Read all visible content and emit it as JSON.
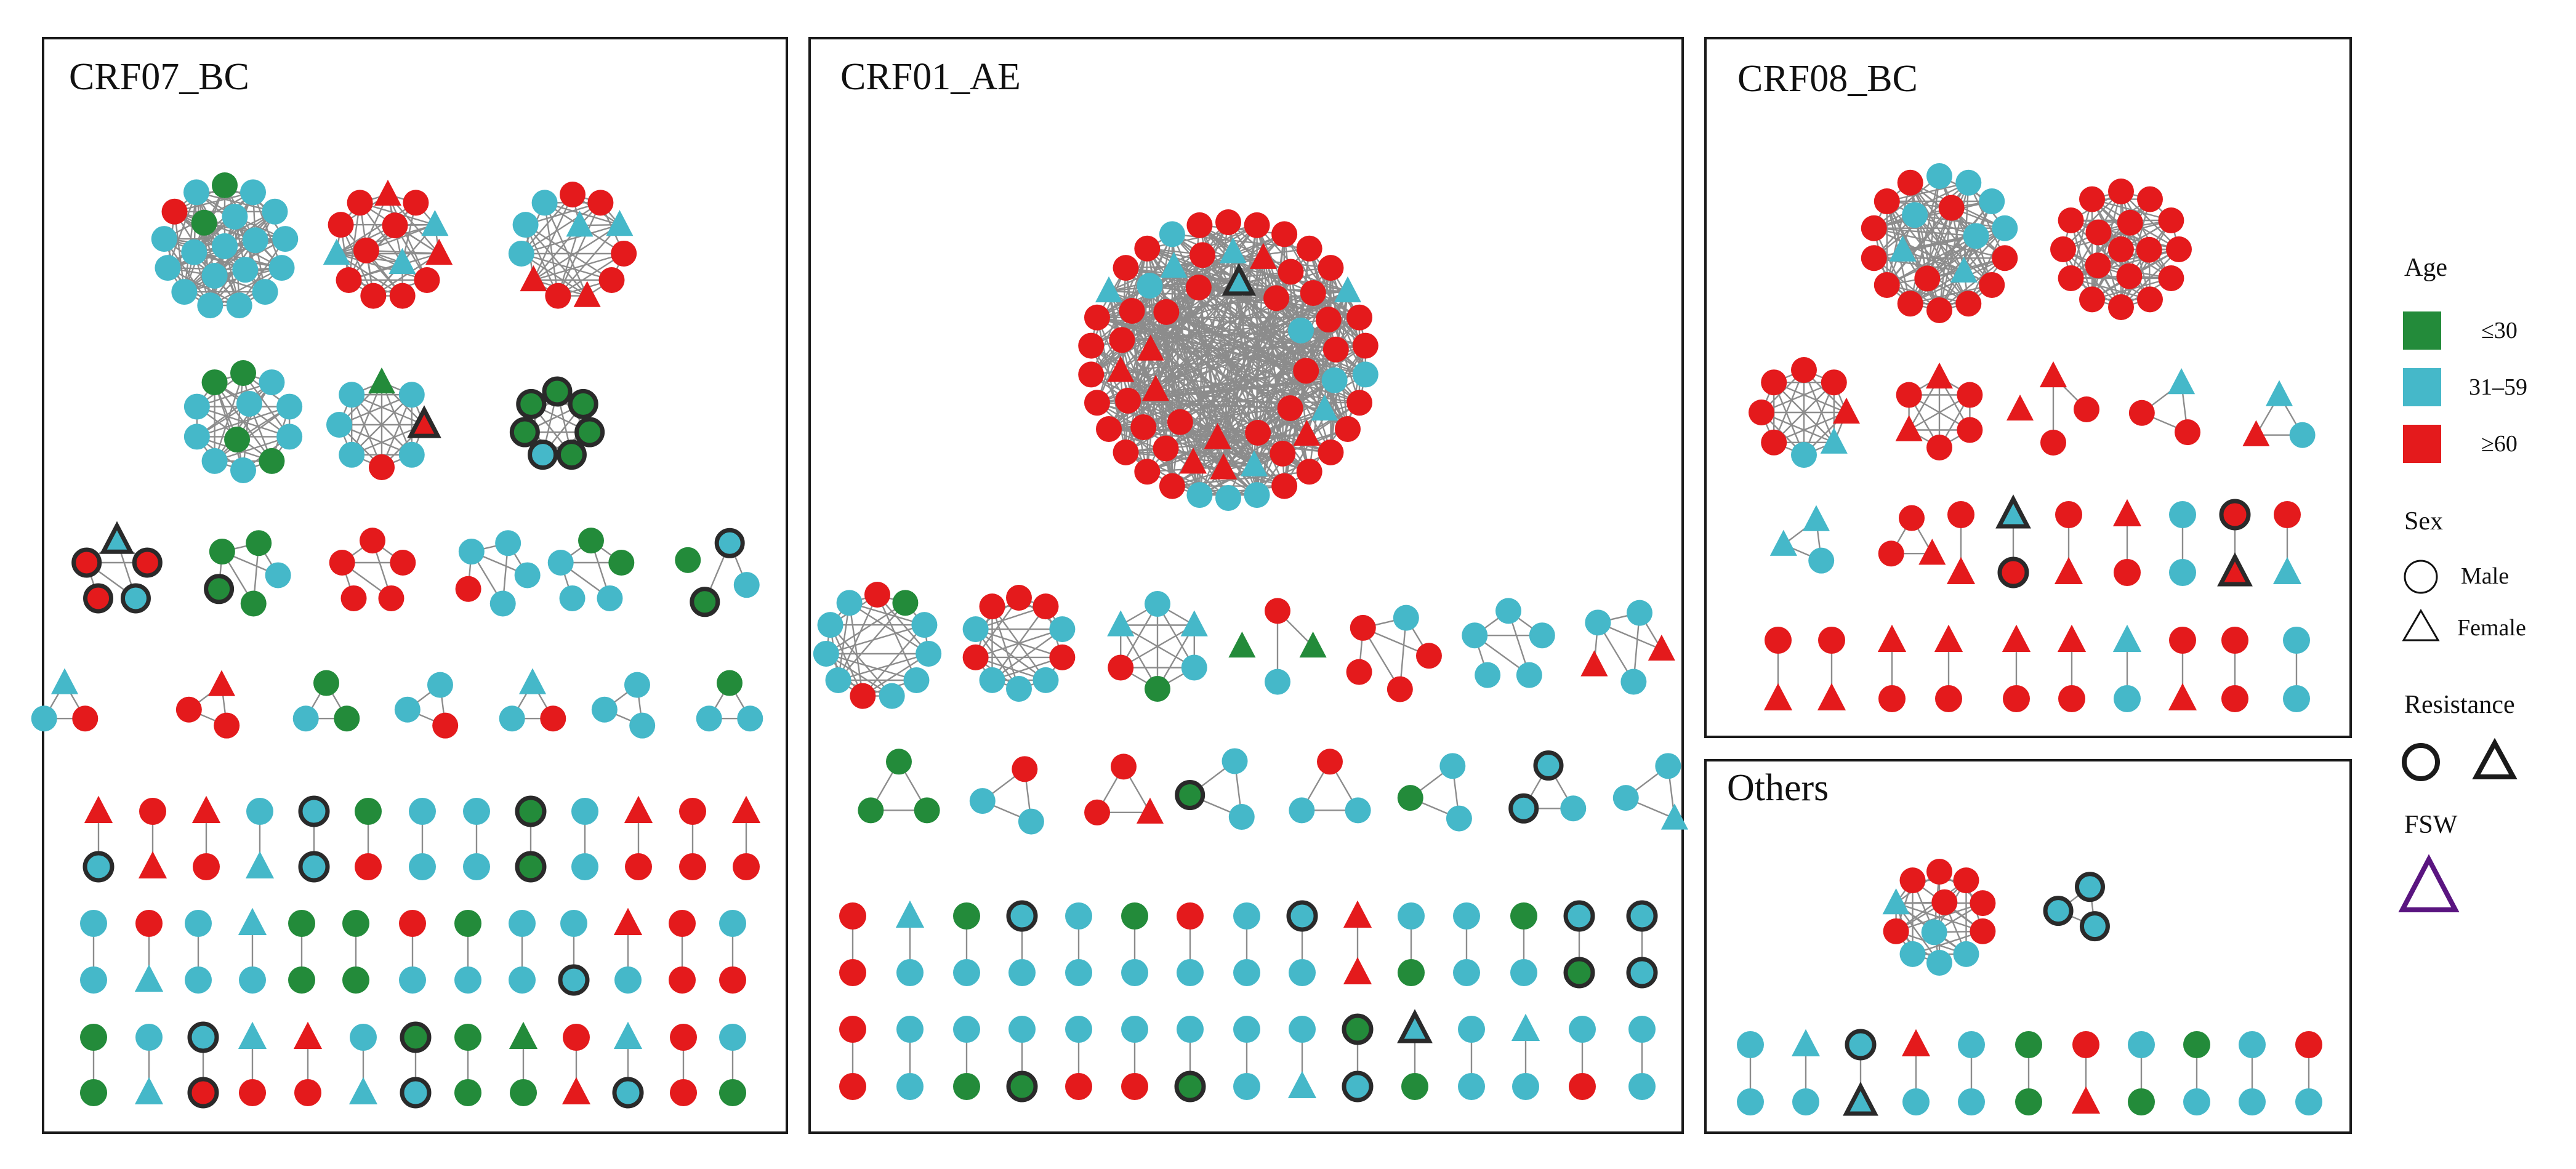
{
  "panels": [
    {
      "title": "CRF07_BC"
    },
    {
      "title": "CRF01_AE"
    },
    {
      "title": "CRF08_BC"
    },
    {
      "title": "Others"
    }
  ],
  "legend": {
    "age_title": "Age",
    "age_items": [
      {
        "label": "≤30",
        "color": "#238b3a"
      },
      {
        "label": "31–59",
        "color": "#45b8c9"
      },
      {
        "label": "≥60",
        "color": "#e41a1c"
      }
    ],
    "sex_title": "Sex",
    "sex_items": [
      {
        "label": "Male",
        "shape": "circle"
      },
      {
        "label": "Female",
        "shape": "triangle"
      }
    ],
    "resistance_title": "Resistance",
    "resistance_outline_color": "#2a2a2a",
    "fsw_title": "FSW",
    "fsw_outline_color": "#5a1580"
  },
  "colors": {
    "green": "#238b3a",
    "cyan": "#45b8c9",
    "red": "#e41a1c",
    "edge": "#8c8c8c",
    "frame": "#1a1a1a"
  },
  "networks": {
    "node_key": "age: g=≤30, c=31–59, r=≥60; sex: o=male, t=female; x=resistance, f=FSW",
    "CRF07_BC": {
      "clusters": [
        [
          "go",
          "co",
          "co",
          "co",
          "co",
          "co",
          "co",
          "co",
          "co",
          "co",
          "co",
          "ro",
          "co",
          "co",
          "co",
          "co",
          "co",
          "co",
          "go",
          "co",
          "co"
        ],
        [
          "rt",
          "ro",
          "ct",
          "rt",
          "ro",
          "ro",
          "ro",
          "ro",
          "ct",
          "ro",
          "ro",
          "ro",
          "ct",
          "ro"
        ],
        [
          "ro",
          "ro",
          "ct",
          "ro",
          "ro",
          "rt",
          "ro",
          "rt",
          "co",
          "co",
          "co",
          "ct"
        ],
        [
          "go",
          "co",
          "co",
          "co",
          "go",
          "co",
          "co",
          "co",
          "co",
          "go",
          "co",
          "go"
        ],
        [
          "gt",
          "co",
          "rtx",
          "co",
          "ro",
          "co",
          "co",
          "co"
        ],
        [
          "gox",
          "gox",
          "gox",
          "gox",
          "cox",
          "gox",
          "gox"
        ],
        [
          "ctx",
          "rox",
          "cox",
          "rox",
          "rox"
        ],
        [
          "go",
          "co",
          "go",
          "gox",
          "go"
        ],
        [
          "ro",
          "ro",
          "ro",
          "ro",
          "ro"
        ],
        [
          "co",
          "co",
          "co",
          "ro",
          "co"
        ],
        [
          "go",
          "go",
          "co",
          "co",
          "co"
        ],
        [
          "cox",
          "co",
          "gox",
          "go"
        ],
        [
          "ct",
          "ro",
          "co"
        ],
        [
          "rt",
          "ro",
          "ro"
        ],
        [
          "go",
          "go",
          "co"
        ],
        [
          "co",
          "ro",
          "co"
        ],
        [
          "ct",
          "ro",
          "co"
        ],
        [
          "co",
          "co",
          "co"
        ],
        [
          "go",
          "co",
          "co"
        ]
      ],
      "pairs": [
        [
          "rt",
          "cox"
        ],
        [
          "ro",
          "rt"
        ],
        [
          "rt",
          "ro"
        ],
        [
          "co",
          "ct"
        ],
        [
          "cox",
          "cox"
        ],
        [
          "go",
          "ro"
        ],
        [
          "co",
          "co"
        ],
        [
          "co",
          "co"
        ],
        [
          "gox",
          "gox"
        ],
        [
          "co",
          "co"
        ],
        [
          "rt",
          "ro"
        ],
        [
          "ro",
          "ro"
        ],
        [
          "rt",
          "ro"
        ],
        [
          "co",
          "co"
        ],
        [
          "ro",
          "ct"
        ],
        [
          "co",
          "co"
        ],
        [
          "ct",
          "co"
        ],
        [
          "go",
          "go"
        ],
        [
          "go",
          "go"
        ],
        [
          "ro",
          "co"
        ],
        [
          "go",
          "co"
        ],
        [
          "co",
          "co"
        ],
        [
          "co",
          "cox"
        ],
        [
          "rt",
          "co"
        ],
        [
          "ro",
          "ro"
        ],
        [
          "co",
          "ro"
        ],
        [
          "go",
          "go"
        ],
        [
          "co",
          "ct"
        ],
        [
          "cox",
          "rox"
        ],
        [
          "ct",
          "ro"
        ],
        [
          "rt",
          "ro"
        ],
        [
          "co",
          "ct"
        ],
        [
          "gox",
          "cox"
        ],
        [
          "go",
          "go"
        ],
        [
          "gt",
          "go"
        ],
        [
          "ro",
          "rt"
        ],
        [
          "ct",
          "cox"
        ],
        [
          "ro",
          "ro"
        ],
        [
          "co",
          "go"
        ]
      ]
    },
    "CRF01_AE": {
      "clusters": [
        [
          "ro",
          "ro",
          "ro",
          "ro",
          "ro",
          "ct",
          "ro",
          "ro",
          "co",
          "ro",
          "ro",
          "ro",
          "ro",
          "ro",
          "co",
          "co",
          "co",
          "ro",
          "ro",
          "ro",
          "ro",
          "ro",
          "ro",
          "ro",
          "ro",
          "ct",
          "ro",
          "ro",
          "co",
          "ro",
          "rt",
          "ro",
          "ro",
          "ro",
          "ro",
          "co",
          "ct",
          "rt",
          "ro",
          "ct",
          "rt",
          "rt",
          "ro",
          "ro",
          "ro",
          "rt",
          "ro",
          "ro",
          "co",
          "ct",
          "ro",
          "ct",
          "ro",
          "co",
          "ro",
          "ro",
          "ro",
          "rt",
          "ro",
          "rt",
          "rt",
          "ro",
          "ro",
          "ctx"
        ],
        [
          "ro",
          "go",
          "co",
          "co",
          "co",
          "co",
          "ro",
          "co",
          "co",
          "co",
          "co"
        ],
        [
          "ro",
          "ro",
          "co",
          "ro",
          "co",
          "co",
          "co",
          "ro",
          "co",
          "ro"
        ],
        [
          "co",
          "ct",
          "co",
          "go",
          "ro",
          "ct"
        ],
        [
          "ro",
          "gt",
          "co",
          "gt"
        ],
        [
          "co",
          "ro",
          "ro",
          "ro",
          "ro"
        ],
        [
          "co",
          "co",
          "co",
          "co",
          "co"
        ],
        [
          "co",
          "rt",
          "co",
          "rt",
          "co"
        ],
        [
          "go",
          "go",
          "go"
        ],
        [
          "ro",
          "co",
          "co"
        ],
        [
          "ro",
          "rt",
          "ro"
        ],
        [
          "co",
          "co",
          "gox"
        ],
        [
          "ro",
          "co",
          "co"
        ],
        [
          "co",
          "co",
          "go"
        ],
        [
          "cox",
          "co",
          "cox"
        ],
        [
          "co",
          "ct",
          "co"
        ]
      ],
      "pairs": [
        [
          "ro",
          "ro"
        ],
        [
          "ct",
          "co"
        ],
        [
          "go",
          "co"
        ],
        [
          "cox",
          "co"
        ],
        [
          "co",
          "co"
        ],
        [
          "go",
          "co"
        ],
        [
          "ro",
          "co"
        ],
        [
          "co",
          "co"
        ],
        [
          "cox",
          "co"
        ],
        [
          "rt",
          "rt"
        ],
        [
          "co",
          "go"
        ],
        [
          "co",
          "co"
        ],
        [
          "go",
          "co"
        ],
        [
          "cox",
          "gox"
        ],
        [
          "cox",
          "cox"
        ],
        [
          "ro",
          "ro"
        ],
        [
          "co",
          "co"
        ],
        [
          "co",
          "go"
        ],
        [
          "co",
          "gox"
        ],
        [
          "co",
          "ro"
        ],
        [
          "co",
          "ro"
        ],
        [
          "co",
          "gox"
        ],
        [
          "co",
          "co"
        ],
        [
          "co",
          "ct"
        ],
        [
          "gox",
          "cox"
        ],
        [
          "ctx",
          "go"
        ],
        [
          "co",
          "co"
        ],
        [
          "ct",
          "co"
        ],
        [
          "co",
          "ro"
        ],
        [
          "co",
          "co"
        ]
      ]
    },
    "CRF08_BC": {
      "clusters": [
        [
          "cf",
          "co",
          "co",
          "co",
          "ro",
          "ro",
          "ro",
          "ro",
          "ro",
          "ro",
          "ro",
          "ro",
          "ro",
          "ro",
          "ro",
          "co",
          "ct",
          "ro",
          "ct",
          "co"
        ],
        [
          "ro",
          "ro",
          "ro",
          "ro",
          "ro",
          "ro",
          "ro",
          "ro",
          "ro",
          "ro",
          "ro",
          "ro",
          "ro",
          "ro",
          "ro",
          "ro",
          "ro",
          "ro"
        ],
        [
          "ro",
          "ro",
          "rt",
          "ct",
          "co",
          "ro",
          "ro",
          "ro"
        ],
        [
          "rt",
          "ro",
          "ro",
          "ro",
          "rt",
          "ro"
        ],
        [
          "rt",
          "ro",
          "ro",
          "rt"
        ],
        [
          "ct",
          "ro",
          "ro"
        ],
        [
          "ct",
          "co",
          "rt"
        ],
        [
          "ct",
          "co",
          "ct"
        ],
        [
          "ro",
          "rt",
          "ro"
        ]
      ],
      "pairs": [
        [
          "ro",
          "rt"
        ],
        [
          "ctx",
          "rox"
        ],
        [
          "ro",
          "rt"
        ],
        [
          "rt",
          "ro"
        ],
        [
          "co",
          "co"
        ],
        [
          "rox",
          "rtx"
        ],
        [
          "ro",
          "ct"
        ],
        [
          "ro",
          "rt"
        ],
        [
          "ro",
          "rt"
        ],
        [
          "rt",
          "ro"
        ],
        [
          "rt",
          "ro"
        ],
        [
          "rt",
          "ro"
        ],
        [
          "rt",
          "ro"
        ],
        [
          "ct",
          "co"
        ],
        [
          "ro",
          "rt"
        ],
        [
          "ro",
          "ro"
        ],
        [
          "co",
          "co"
        ]
      ]
    },
    "Others": {
      "clusters": [
        [
          "ro",
          "ro",
          "ro",
          "ro",
          "co",
          "co",
          "co",
          "ro",
          "ct",
          "ro",
          "ro",
          "co"
        ],
        [
          "cox",
          "cox",
          "cox"
        ]
      ],
      "pairs": [
        [
          "co",
          "co"
        ],
        [
          "ct",
          "co"
        ],
        [
          "cox",
          "ctx"
        ],
        [
          "rt",
          "co"
        ],
        [
          "co",
          "co"
        ],
        [
          "go",
          "go"
        ],
        [
          "ro",
          "rt"
        ],
        [
          "co",
          "go"
        ],
        [
          "go",
          "co"
        ],
        [
          "co",
          "co"
        ],
        [
          "ro",
          "co"
        ]
      ]
    }
  }
}
